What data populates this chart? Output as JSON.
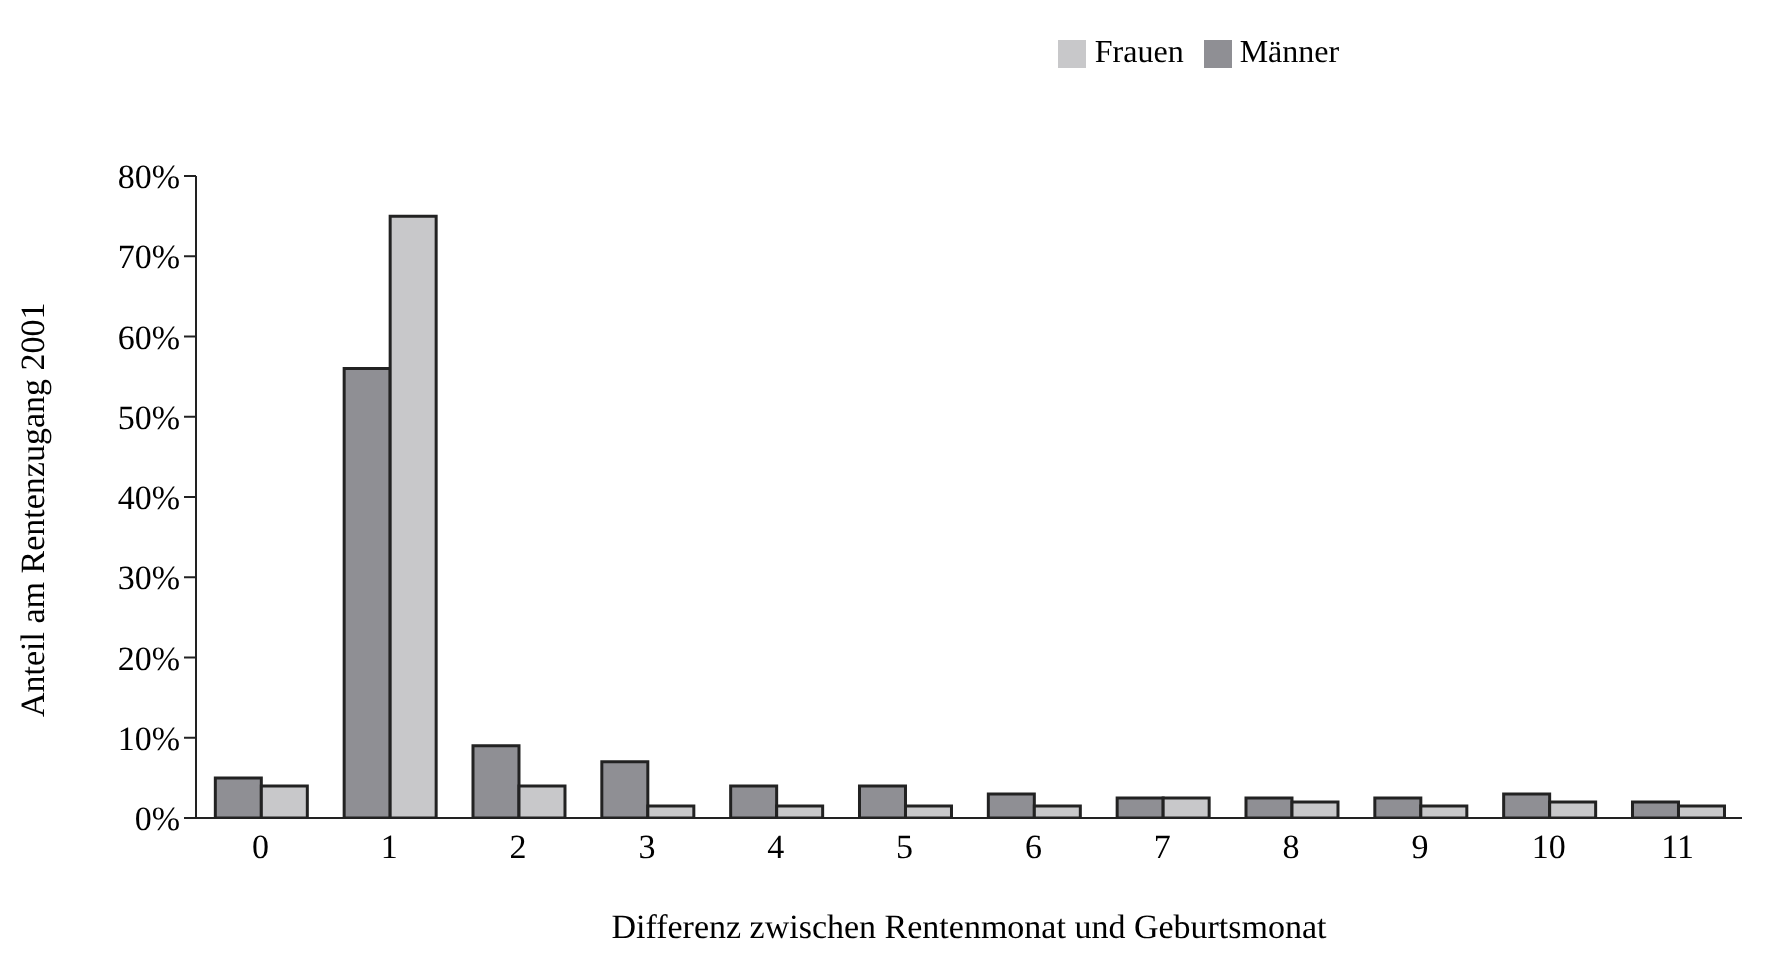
{
  "chart_data": {
    "type": "bar",
    "xlabel": "Differenz zwischen Rentenmonat und Geburtsmonat",
    "ylabel": "Anteil am Rentenzugang 2001",
    "categories": [
      "0",
      "1",
      "2",
      "3",
      "4",
      "5",
      "6",
      "7",
      "8",
      "9",
      "10",
      "11"
    ],
    "series": [
      {
        "name": "Männer",
        "color": "#8f8f94",
        "values": [
          5,
          56,
          9,
          7,
          4,
          4,
          3,
          2.5,
          2.5,
          2.5,
          3,
          2
        ]
      },
      {
        "name": "Frauen",
        "color": "#c8c8ca",
        "values": [
          4,
          75,
          4,
          1.5,
          1.5,
          1.5,
          1.5,
          2.5,
          2,
          1.5,
          2,
          1.5
        ]
      }
    ],
    "ylim": [
      0,
      80
    ],
    "yticks": [
      {
        "value": 0,
        "label": "0%"
      },
      {
        "value": 10,
        "label": "10%"
      },
      {
        "value": 20,
        "label": "20%"
      },
      {
        "value": 30,
        "label": "30%"
      },
      {
        "value": 40,
        "label": "40%"
      },
      {
        "value": 50,
        "label": "50%"
      },
      {
        "value": 60,
        "label": "60%"
      },
      {
        "value": 70,
        "label": "70%"
      },
      {
        "value": 80,
        "label": "80%"
      }
    ],
    "grid": false,
    "legend": "top"
  }
}
